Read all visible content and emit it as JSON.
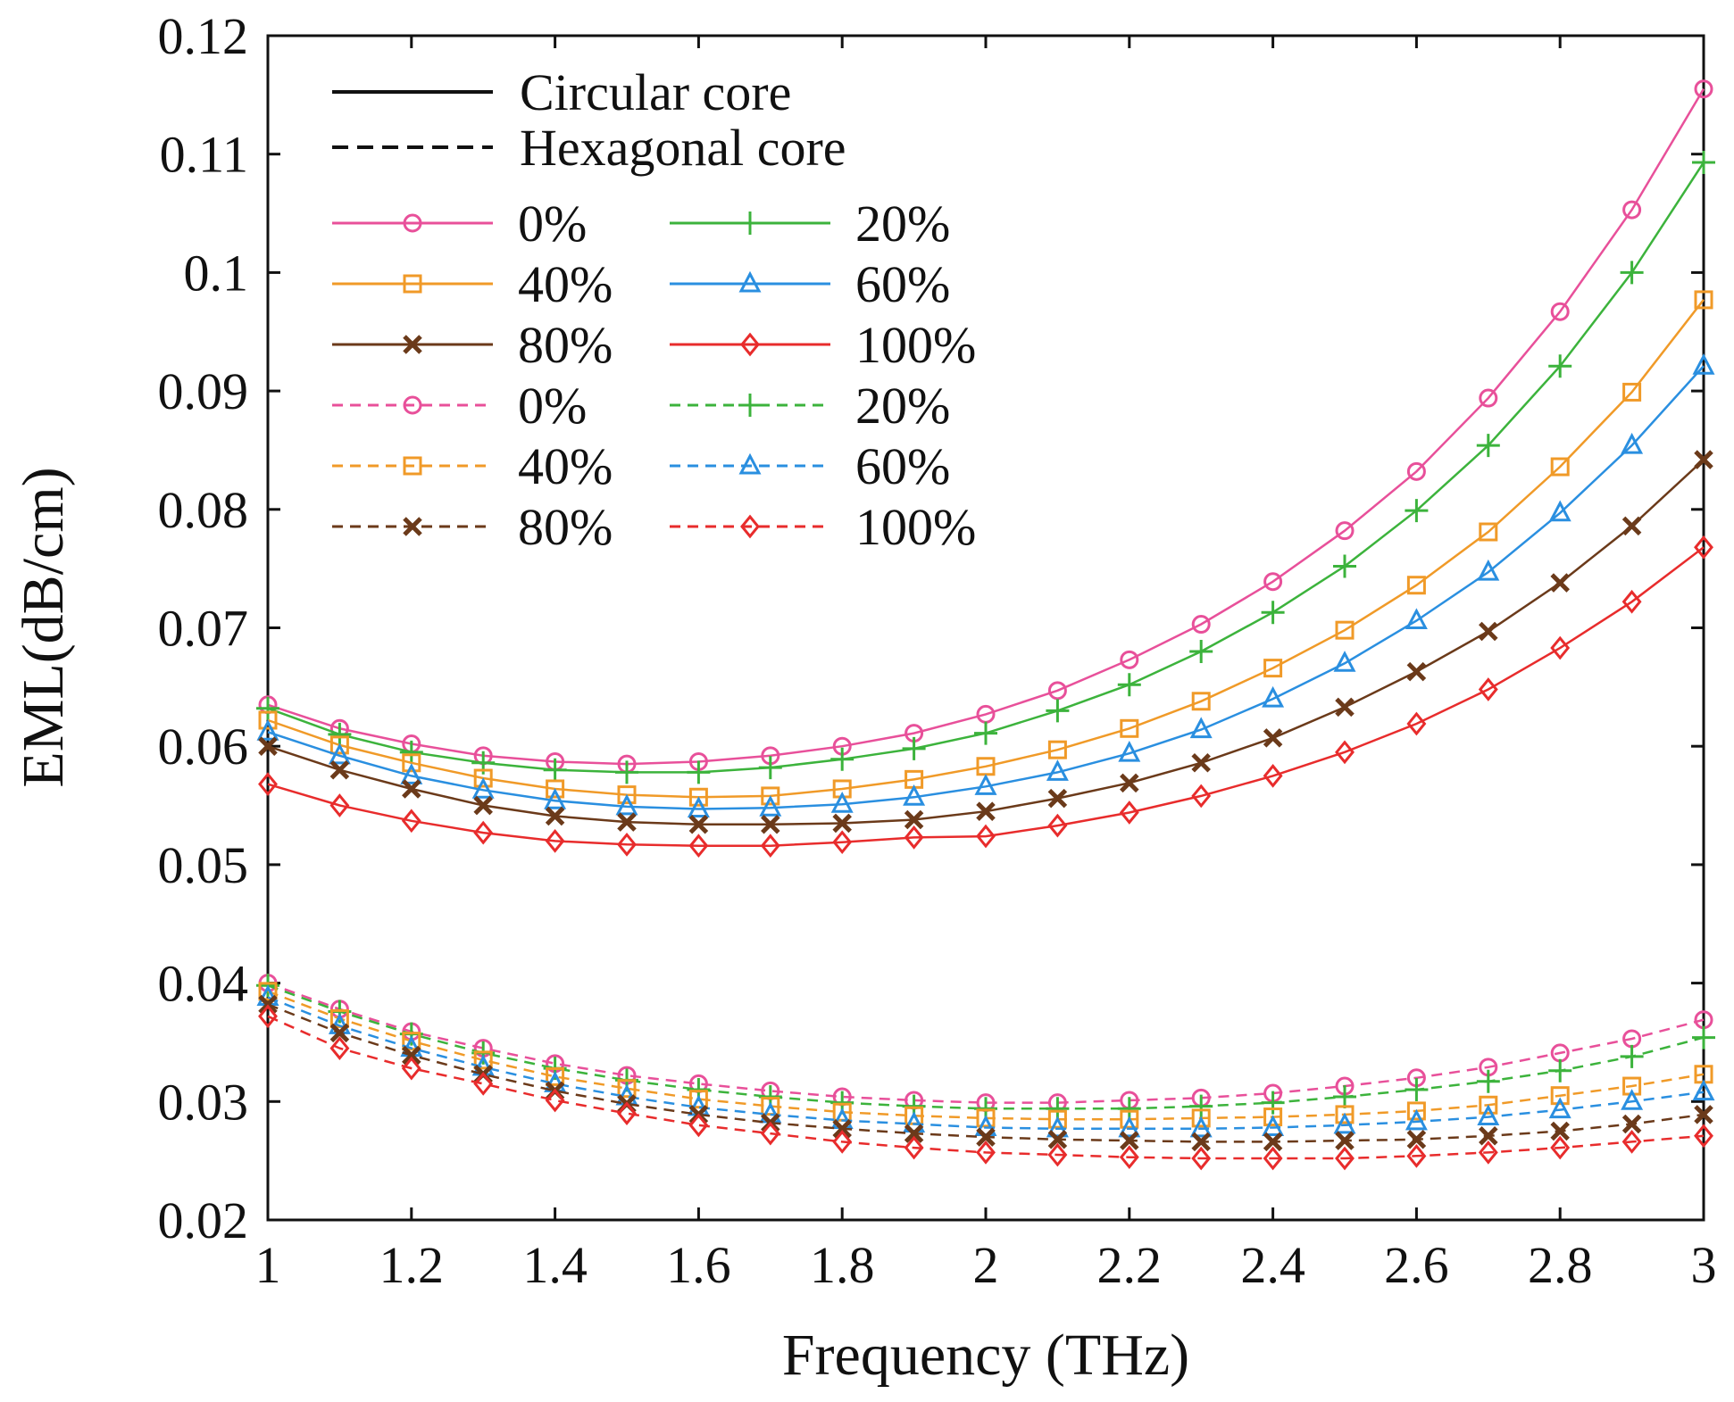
{
  "chart_data": {
    "type": "line",
    "xlabel": "Frequency (THz)",
    "ylabel": "EML(dB/cm)",
    "xlim": [
      1,
      3
    ],
    "ylim": [
      0.02,
      0.12
    ],
    "xticks": [
      "1",
      "1.2",
      "1.4",
      "1.6",
      "1.8",
      "2",
      "2.2",
      "2.4",
      "2.6",
      "2.8",
      "3"
    ],
    "yticks": [
      "0.02",
      "0.03",
      "0.04",
      "0.05",
      "0.06",
      "0.07",
      "0.08",
      "0.09",
      "0.1",
      "0.11",
      "0.12"
    ],
    "grid": false,
    "legend_placement": "top-left",
    "style_legend": [
      {
        "label": "Circular core",
        "dash": "solid"
      },
      {
        "label": "Hexagonal core",
        "dash": "dashed"
      }
    ],
    "x": [
      1.0,
      1.1,
      1.2,
      1.3,
      1.4,
      1.5,
      1.6,
      1.7,
      1.8,
      1.9,
      2.0,
      2.1,
      2.2,
      2.3,
      2.4,
      2.5,
      2.6,
      2.7,
      2.8,
      2.9,
      3.0
    ],
    "series": [
      {
        "name": "0%",
        "core": "Circular core",
        "color": "#e8509a",
        "marker": "circle",
        "dash": "solid",
        "values": [
          0.0635,
          0.0615,
          0.0602,
          0.0592,
          0.0587,
          0.0585,
          0.0587,
          0.0592,
          0.06,
          0.0611,
          0.0627,
          0.0647,
          0.0673,
          0.0703,
          0.0739,
          0.0782,
          0.0832,
          0.0894,
          0.0967,
          0.1053,
          0.1155
        ]
      },
      {
        "name": "20%",
        "core": "Circular core",
        "color": "#3cb33c",
        "marker": "plus",
        "dash": "solid",
        "values": [
          0.0632,
          0.061,
          0.0595,
          0.0586,
          0.058,
          0.0578,
          0.0578,
          0.0582,
          0.0589,
          0.0598,
          0.0611,
          0.063,
          0.0652,
          0.068,
          0.0713,
          0.0752,
          0.0799,
          0.0854,
          0.0921,
          0.1,
          0.1093
        ]
      },
      {
        "name": "40%",
        "core": "Circular core",
        "color": "#f09a28",
        "marker": "square",
        "dash": "solid",
        "values": [
          0.0622,
          0.0601,
          0.0586,
          0.0573,
          0.0564,
          0.0559,
          0.0557,
          0.0558,
          0.0564,
          0.0572,
          0.0583,
          0.0597,
          0.0615,
          0.0638,
          0.0666,
          0.0698,
          0.0736,
          0.0781,
          0.0836,
          0.0899,
          0.0977
        ]
      },
      {
        "name": "60%",
        "core": "Circular core",
        "color": "#2a8fe0",
        "marker": "triangle",
        "dash": "solid",
        "values": [
          0.0612,
          0.0592,
          0.0575,
          0.0563,
          0.0554,
          0.0549,
          0.0547,
          0.0548,
          0.0551,
          0.0557,
          0.0566,
          0.0578,
          0.0594,
          0.0614,
          0.064,
          0.067,
          0.0706,
          0.0747,
          0.0797,
          0.0854,
          0.0921
        ]
      },
      {
        "name": "80%",
        "core": "Circular core",
        "color": "#6b3a1a",
        "marker": "x",
        "dash": "solid",
        "values": [
          0.06,
          0.058,
          0.0564,
          0.055,
          0.0541,
          0.0536,
          0.0534,
          0.0534,
          0.0535,
          0.0538,
          0.0545,
          0.0556,
          0.0569,
          0.0586,
          0.0607,
          0.0633,
          0.0663,
          0.0697,
          0.0738,
          0.0786,
          0.0842
        ]
      },
      {
        "name": "100%",
        "core": "Circular core",
        "color": "#e82c2c",
        "marker": "diamond",
        "dash": "solid",
        "values": [
          0.0568,
          0.055,
          0.0537,
          0.0527,
          0.052,
          0.0517,
          0.0516,
          0.0516,
          0.0519,
          0.0523,
          0.0524,
          0.0533,
          0.0544,
          0.0558,
          0.0575,
          0.0595,
          0.0619,
          0.0648,
          0.0683,
          0.0722,
          0.0768
        ]
      },
      {
        "name": "0%",
        "core": "Hexagonal core",
        "color": "#e8509a",
        "marker": "circle",
        "dash": "dashed",
        "values": [
          0.04,
          0.0378,
          0.0359,
          0.0345,
          0.0332,
          0.0322,
          0.0315,
          0.0309,
          0.0304,
          0.0301,
          0.0299,
          0.0299,
          0.0301,
          0.0303,
          0.0307,
          0.0313,
          0.032,
          0.0329,
          0.0341,
          0.0353,
          0.0369
        ]
      },
      {
        "name": "20%",
        "core": "Hexagonal core",
        "color": "#3cb33c",
        "marker": "plus",
        "dash": "dashed",
        "values": [
          0.0398,
          0.0376,
          0.0357,
          0.0341,
          0.0328,
          0.0318,
          0.031,
          0.0304,
          0.0299,
          0.0296,
          0.0294,
          0.0294,
          0.0294,
          0.0296,
          0.0299,
          0.0304,
          0.031,
          0.0317,
          0.0326,
          0.0338,
          0.0354
        ]
      },
      {
        "name": "40%",
        "core": "Hexagonal core",
        "color": "#f09a28",
        "marker": "square",
        "dash": "dashed",
        "values": [
          0.0393,
          0.037,
          0.0351,
          0.0335,
          0.0321,
          0.0311,
          0.0302,
          0.0296,
          0.0291,
          0.0288,
          0.0286,
          0.0285,
          0.0285,
          0.0286,
          0.0287,
          0.0289,
          0.0292,
          0.0297,
          0.0305,
          0.0313,
          0.0323
        ]
      },
      {
        "name": "60%",
        "core": "Hexagonal core",
        "color": "#2a8fe0",
        "marker": "triangle",
        "dash": "dashed",
        "values": [
          0.0388,
          0.0364,
          0.0345,
          0.0329,
          0.0315,
          0.0304,
          0.0295,
          0.0289,
          0.0284,
          0.0281,
          0.0278,
          0.0277,
          0.0277,
          0.0277,
          0.0278,
          0.028,
          0.0283,
          0.0287,
          0.0293,
          0.03,
          0.0308
        ]
      },
      {
        "name": "80%",
        "core": "Hexagonal core",
        "color": "#6b3a1a",
        "marker": "x",
        "dash": "dashed",
        "values": [
          0.0382,
          0.0358,
          0.0339,
          0.0323,
          0.0309,
          0.0298,
          0.0289,
          0.0282,
          0.0277,
          0.0273,
          0.027,
          0.0268,
          0.0267,
          0.0266,
          0.0266,
          0.0267,
          0.0268,
          0.0271,
          0.0275,
          0.0281,
          0.0289
        ]
      },
      {
        "name": "100%",
        "core": "Hexagonal core",
        "color": "#e82c2c",
        "marker": "diamond",
        "dash": "dashed",
        "values": [
          0.0372,
          0.0345,
          0.0328,
          0.0315,
          0.0301,
          0.029,
          0.028,
          0.0273,
          0.0266,
          0.0261,
          0.0257,
          0.0255,
          0.0253,
          0.0252,
          0.0252,
          0.0252,
          0.0254,
          0.0257,
          0.0261,
          0.0266,
          0.0271
        ]
      }
    ]
  }
}
